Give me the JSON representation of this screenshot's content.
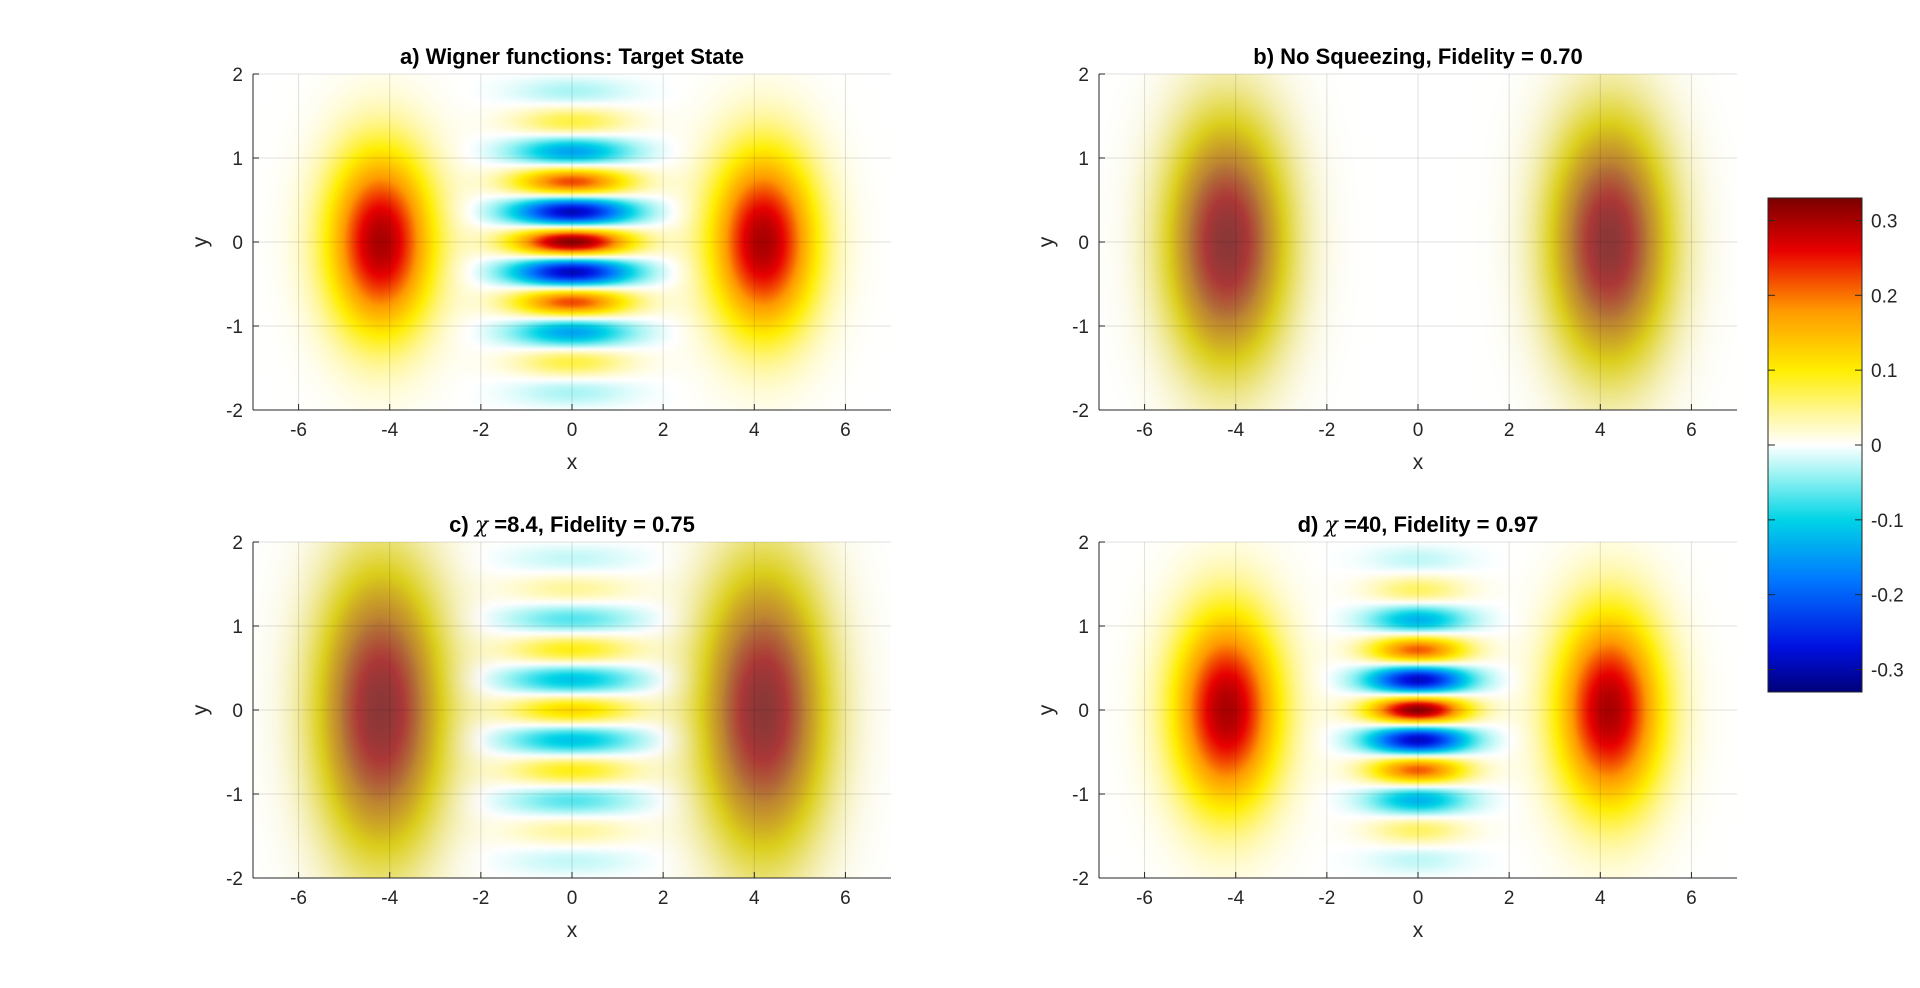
{
  "figure": {
    "background": "#ffffff"
  },
  "chart_data": [
    {
      "id": "a",
      "type": "heatmap",
      "title": "a) Wigner functions: Target State",
      "title_parts": [
        "a) Wigner functions: Target State"
      ],
      "xlabel": "x",
      "ylabel": "y",
      "xlim": [
        -7,
        7
      ],
      "ylim": [
        -2,
        2
      ],
      "xticks": [
        -6,
        -4,
        -2,
        0,
        2,
        4,
        6
      ],
      "yticks": [
        -2,
        -1,
        0,
        1,
        2
      ],
      "grid": true,
      "features": [
        {
          "kind": "blob",
          "center": [
            -4.2,
            0
          ],
          "sigma_x": 0.8,
          "sigma_y": 0.75,
          "peak": 0.3
        },
        {
          "kind": "blob",
          "center": [
            4.2,
            0
          ],
          "sigma_x": 0.8,
          "sigma_y": 0.75,
          "peak": 0.3
        },
        {
          "kind": "fringes",
          "center": [
            0,
            0
          ],
          "sigma_x": 0.9,
          "sigma_y": 0.85,
          "peak": 0.32,
          "fringe_frequency": 8.6
        }
      ]
    },
    {
      "id": "b",
      "type": "heatmap",
      "title": "b) No Squeezing, Fidelity = 0.70",
      "title_parts": [
        "b) No Squeezing, Fidelity = 0.70"
      ],
      "xlabel": "x",
      "ylabel": "y",
      "xlim": [
        -7,
        7
      ],
      "ylim": [
        -2,
        2
      ],
      "xticks": [
        -6,
        -4,
        -2,
        0,
        2,
        4,
        6
      ],
      "yticks": [
        -2,
        -1,
        0,
        1,
        2
      ],
      "grid": true,
      "features": [
        {
          "kind": "blob",
          "center": [
            -4.2,
            0
          ],
          "sigma_x": 0.85,
          "sigma_y": 0.95,
          "peak": 0.3,
          "gray_halo": true
        },
        {
          "kind": "blob",
          "center": [
            4.2,
            0
          ],
          "sigma_x": 0.85,
          "sigma_y": 0.95,
          "peak": 0.3,
          "gray_halo": true
        }
      ]
    },
    {
      "id": "c",
      "type": "heatmap",
      "title": "c) χ =8.4, Fidelity = 0.75",
      "title_parts": [
        "c) ",
        "χ",
        " =8.4, Fidelity = 0.75"
      ],
      "xlabel": "x",
      "ylabel": "y",
      "xlim": [
        -7,
        7
      ],
      "ylim": [
        -2,
        2
      ],
      "xticks": [
        -6,
        -4,
        -2,
        0,
        2,
        4,
        6
      ],
      "yticks": [
        -2,
        -1,
        0,
        1,
        2
      ],
      "grid": true,
      "features": [
        {
          "kind": "blob",
          "center": [
            -4.2,
            0
          ],
          "sigma_x": 0.9,
          "sigma_y": 1.1,
          "peak": 0.3,
          "gray_halo": true
        },
        {
          "kind": "blob",
          "center": [
            4.2,
            0
          ],
          "sigma_x": 0.9,
          "sigma_y": 1.1,
          "peak": 0.3,
          "gray_halo": true
        },
        {
          "kind": "fringes",
          "center": [
            0,
            0
          ],
          "sigma_x": 1.0,
          "sigma_y": 1.0,
          "peak": 0.12,
          "fringe_frequency": 8.6
        }
      ]
    },
    {
      "id": "d",
      "type": "heatmap",
      "title": "d) χ =40, Fidelity = 0.97",
      "title_parts": [
        "d) ",
        "χ",
        " =40, Fidelity = 0.97"
      ],
      "xlabel": "x",
      "ylabel": "y",
      "xlim": [
        -7,
        7
      ],
      "ylim": [
        -2,
        2
      ],
      "xticks": [
        -6,
        -4,
        -2,
        0,
        2,
        4,
        6
      ],
      "yticks": [
        -2,
        -1,
        0,
        1,
        2
      ],
      "grid": true,
      "features": [
        {
          "kind": "blob",
          "center": [
            -4.2,
            0
          ],
          "sigma_x": 0.8,
          "sigma_y": 0.8,
          "peak": 0.3
        },
        {
          "kind": "blob",
          "center": [
            4.2,
            0
          ],
          "sigma_x": 0.8,
          "sigma_y": 0.8,
          "peak": 0.3
        },
        {
          "kind": "fringes",
          "center": [
            0,
            0
          ],
          "sigma_x": 0.75,
          "sigma_y": 0.8,
          "peak": 0.32,
          "fringe_frequency": 8.6
        }
      ]
    }
  ],
  "colorbar": {
    "limits": [
      -0.33,
      0.33
    ],
    "ticks": [
      0.3,
      0.2,
      0.1,
      0,
      -0.1,
      -0.2,
      -0.3
    ],
    "tick_labels": [
      "0.3",
      "0.2",
      "0.1",
      "0",
      "-0.1",
      "-0.2",
      "-0.3"
    ],
    "colormap_stops": [
      {
        "value": -0.33,
        "color": "#00007a"
      },
      {
        "value": -0.27,
        "color": "#0010e0"
      },
      {
        "value": -0.18,
        "color": "#0078ff"
      },
      {
        "value": -0.1,
        "color": "#00d4e6"
      },
      {
        "value": -0.04,
        "color": "#9af3f3"
      },
      {
        "value": 0.0,
        "color": "#ffffff"
      },
      {
        "value": 0.04,
        "color": "#fff7a0"
      },
      {
        "value": 0.1,
        "color": "#ffee00"
      },
      {
        "value": 0.18,
        "color": "#ff9900"
      },
      {
        "value": 0.26,
        "color": "#e80000"
      },
      {
        "value": 0.33,
        "color": "#7a0000"
      }
    ]
  }
}
